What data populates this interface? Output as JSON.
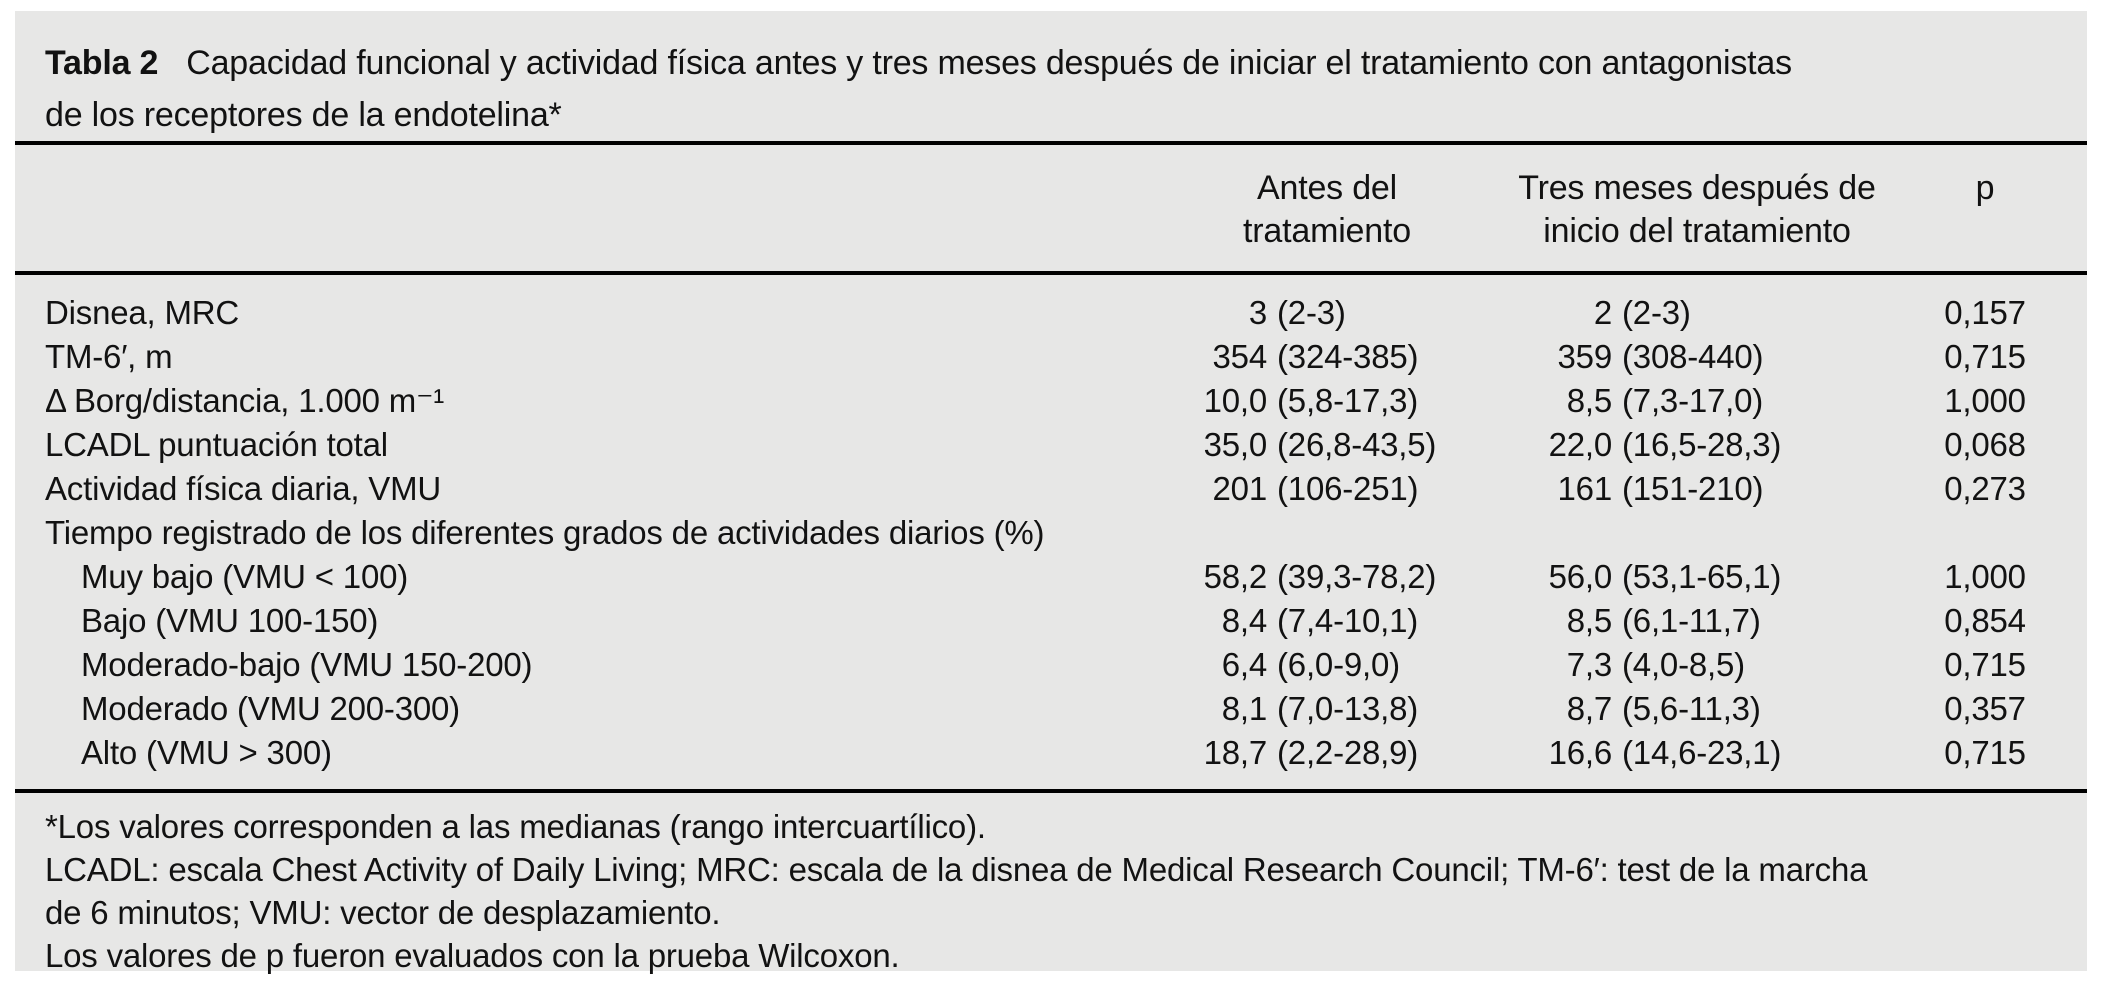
{
  "colors": {
    "panel_background": "#e7e7e6",
    "text": "#121212",
    "rule": "#000000",
    "page_background": "#ffffff"
  },
  "table": {
    "label": "Tabla 2",
    "title": "Capacidad funcional y actividad física antes y tres meses después de iniciar el tratamiento con antagonistas\nde los receptores de la endotelina*",
    "columns": {
      "before": "Antes del\ntratamiento",
      "after": "Tres meses después de\ninicio del tratamiento",
      "p": "p"
    },
    "rows": [
      {
        "label": "Disnea, MRC",
        "indent": false,
        "section": false,
        "before_med": "3",
        "before_iqr": "(2-3)",
        "after_med": "2",
        "after_iqr": "(2-3)",
        "p": "0,157"
      },
      {
        "label": "TM-6′, m",
        "indent": false,
        "section": false,
        "before_med": "354",
        "before_iqr": "(324-385)",
        "after_med": "359",
        "after_iqr": "(308-440)",
        "p": "0,715"
      },
      {
        "label": "Δ Borg/distancia, 1.000 m⁻¹",
        "indent": false,
        "section": false,
        "before_med": "10,0",
        "before_iqr": "(5,8-17,3)",
        "after_med": "8,5",
        "after_iqr": "(7,3-17,0)",
        "p": "1,000"
      },
      {
        "label": "LCADL puntuación total",
        "indent": false,
        "section": false,
        "before_med": "35,0",
        "before_iqr": "(26,8-43,5)",
        "after_med": "22,0",
        "after_iqr": "(16,5-28,3)",
        "p": "0,068"
      },
      {
        "label": "Actividad física diaria, VMU",
        "indent": false,
        "section": false,
        "before_med": "201",
        "before_iqr": "(106-251)",
        "after_med": "161",
        "after_iqr": "(151-210)",
        "p": "0,273"
      },
      {
        "label": "Tiempo registrado de los diferentes grados de actividades diarios (%)",
        "indent": false,
        "section": true,
        "before_med": "",
        "before_iqr": "",
        "after_med": "",
        "after_iqr": "",
        "p": ""
      },
      {
        "label": "Muy bajo (VMU < 100)",
        "indent": true,
        "section": false,
        "before_med": "58,2",
        "before_iqr": "(39,3-78,2)",
        "after_med": "56,0",
        "after_iqr": "(53,1-65,1)",
        "p": "1,000"
      },
      {
        "label": "Bajo (VMU 100-150)",
        "indent": true,
        "section": false,
        "before_med": "8,4",
        "before_iqr": "(7,4-10,1)",
        "after_med": "8,5",
        "after_iqr": "(6,1-11,7)",
        "p": "0,854"
      },
      {
        "label": "Moderado-bajo (VMU 150-200)",
        "indent": true,
        "section": false,
        "before_med": "6,4",
        "before_iqr": "(6,0-9,0)",
        "after_med": "7,3",
        "after_iqr": "(4,0-8,5)",
        "p": "0,715"
      },
      {
        "label": "Moderado (VMU 200-300)",
        "indent": true,
        "section": false,
        "before_med": "8,1",
        "before_iqr": "(7,0-13,8)",
        "after_med": "8,7",
        "after_iqr": "(5,6-11,3)",
        "p": "0,357"
      },
      {
        "label": "Alto (VMU > 300)",
        "indent": true,
        "section": false,
        "before_med": "18,7",
        "before_iqr": "(2,2-28,9)",
        "after_med": "16,6",
        "after_iqr": "(14,6-23,1)",
        "p": "0,715"
      }
    ],
    "footnotes": [
      "*Los valores corresponden a las medianas (rango intercuartílico).",
      "LCADL: escala Chest Activity of Daily Living; MRC: escala de la disnea de Medical Research Council; TM-6′: test de la marcha",
      "de 6 minutos; VMU: vector de desplazamiento.",
      "Los valores de p fueron evaluados con la prueba Wilcoxon."
    ]
  }
}
